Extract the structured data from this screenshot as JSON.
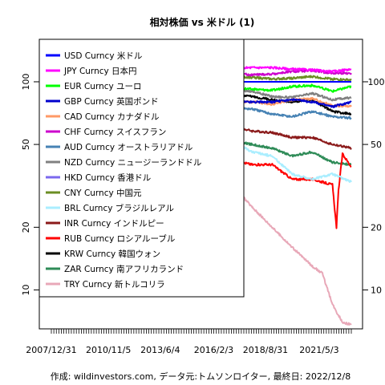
{
  "chart_data": {
    "type": "line",
    "title": "相対株価 vs 米ドル (1)",
    "caption": "作成: wildinvestors.com, データ元:トムソンロイター, 最終日: 2022/12/8",
    "y_scale": "log",
    "ylim": [
      6.5,
      160
    ],
    "y_ticks": [
      10,
      20,
      50,
      100
    ],
    "x_tick_labels": [
      "2007/12/31",
      "2010/11/5",
      "2013/6/4",
      "2016/2/3",
      "2018/8/31",
      "2021/5/3"
    ],
    "x_range": [
      "2007/12/31",
      "2022/12/8"
    ],
    "grid": false,
    "legend_position": "top-left",
    "series": [
      {
        "name": "USD Curncy 米ドル",
        "color": "#0000ff",
        "x": [
          2008,
          2022.94
        ],
        "values": [
          100,
          100
        ]
      },
      {
        "name": "JPY Curncy 日本円",
        "color": "#ff00ff",
        "x": [
          2008,
          2009,
          2010,
          2011,
          2012,
          2013,
          2014,
          2015,
          2016,
          2017,
          2018,
          2019,
          2020,
          2021,
          2022,
          2022.94
        ],
        "values": [
          112,
          118,
          122,
          128,
          130,
          122,
          115,
          111,
          112,
          116,
          117,
          117,
          115,
          114,
          112,
          115
        ]
      },
      {
        "name": "EUR Curncy ユーロ",
        "color": "#00ff00",
        "x": [
          2008,
          2009,
          2010,
          2011,
          2012,
          2013,
          2014,
          2015,
          2016,
          2017,
          2018,
          2019,
          2020,
          2021,
          2022,
          2022.94
        ],
        "values": [
          110,
          100,
          96,
          100,
          94,
          99,
          99,
          92,
          91,
          94,
          92,
          91,
          95,
          96,
          90,
          95
        ]
      },
      {
        "name": "GBP Curncy 英国ポンド",
        "color": "#0000cd",
        "x": [
          2008,
          2009,
          2010,
          2011,
          2012,
          2013,
          2014,
          2015,
          2016,
          2017,
          2018,
          2019,
          2020,
          2021,
          2022,
          2022.94
        ],
        "values": [
          110,
          92,
          90,
          93,
          90,
          88,
          90,
          88,
          82,
          80,
          80,
          80,
          82,
          80,
          76,
          80
        ]
      },
      {
        "name": "CAD Curncy カナダドル",
        "color": "#ff9966",
        "x": [
          2008,
          2009,
          2010,
          2011,
          2012,
          2013,
          2014,
          2015,
          2016,
          2017,
          2018,
          2019,
          2020,
          2021,
          2022,
          2022.94
        ],
        "values": [
          100,
          88,
          96,
          100,
          99,
          95,
          88,
          80,
          76,
          80,
          80,
          78,
          82,
          83,
          77,
          76
        ]
      },
      {
        "name": "CHF Curncy スイスフラン",
        "color": "#cc00cc",
        "x": [
          2008,
          2009,
          2010,
          2011,
          2012,
          2013,
          2014,
          2015,
          2016,
          2017,
          2018,
          2019,
          2020,
          2021,
          2022,
          2022.94
        ],
        "values": [
          105,
          98,
          102,
          115,
          112,
          113,
          112,
          110,
          108,
          110,
          108,
          109,
          112,
          113,
          110,
          110
        ]
      },
      {
        "name": "AUD Curncy オーストラリアドル",
        "color": "#4682b4",
        "x": [
          2008,
          2009,
          2010,
          2011,
          2012,
          2013,
          2014,
          2015,
          2016,
          2017,
          2018,
          2019,
          2020,
          2021,
          2022,
          2022.94
        ],
        "values": [
          105,
          78,
          96,
          103,
          102,
          95,
          88,
          76,
          72,
          75,
          74,
          70,
          68,
          72,
          68,
          67
        ]
      },
      {
        "name": "NZD Curncy ニュージーランドドル",
        "color": "#808080",
        "x": [
          2008,
          2009,
          2010,
          2011,
          2012,
          2013,
          2014,
          2015,
          2016,
          2017,
          2018,
          2019,
          2020,
          2021,
          2022,
          2022.94
        ],
        "values": [
          110,
          85,
          92,
          100,
          102,
          104,
          106,
          94,
          90,
          92,
          90,
          85,
          84,
          88,
          82,
          84
        ]
      },
      {
        "name": "HKD Curncy 香港ドル",
        "color": "#7b68ee",
        "x": [
          2008,
          2022.94
        ],
        "values": [
          100,
          100
        ]
      },
      {
        "name": "CNY Curncy 中国元",
        "color": "#6b8e23",
        "x": [
          2008,
          2009,
          2010,
          2011,
          2012,
          2013,
          2014,
          2015,
          2016,
          2017,
          2018,
          2019,
          2020,
          2021,
          2022,
          2022.94
        ],
        "values": [
          97,
          100,
          102,
          104,
          108,
          110,
          112,
          110,
          104,
          106,
          105,
          103,
          104,
          106,
          103,
          102
        ]
      },
      {
        "name": "BRL Curncy ブラジルレアル",
        "color": "#aaeeff",
        "x": [
          2008,
          2009,
          2010,
          2011,
          2012,
          2013,
          2014,
          2015,
          2016,
          2017,
          2018,
          2019,
          2020,
          2021,
          2022,
          2022.94
        ],
        "values": [
          100,
          90,
          98,
          102,
          85,
          78,
          72,
          52,
          50,
          52,
          46,
          44,
          36,
          34,
          36,
          33
        ]
      },
      {
        "name": "INR Curncy インドルピー",
        "color": "#8b1a1a",
        "x": [
          2008,
          2009,
          2010,
          2011,
          2012,
          2013,
          2014,
          2015,
          2016,
          2017,
          2018,
          2019,
          2020,
          2021,
          2022,
          2022.94
        ],
        "values": [
          100,
          85,
          88,
          87,
          75,
          68,
          66,
          63,
          60,
          61,
          58,
          57,
          54,
          54,
          50,
          48
        ]
      },
      {
        "name": "RUB Curncy ロシアルーブル",
        "color": "#ff0000",
        "x": [
          2008,
          2009,
          2010,
          2011,
          2012,
          2013,
          2014,
          2015,
          2016,
          2017,
          2018,
          2019,
          2020,
          2021,
          2022,
          2022.2,
          2022.3,
          2022.5,
          2022.94
        ],
        "values": [
          100,
          80,
          82,
          84,
          80,
          78,
          65,
          40,
          38,
          42,
          40,
          40,
          34,
          34,
          32,
          20,
          30,
          45,
          39
        ]
      },
      {
        "name": "KRW Curncy 韓国ウォン",
        "color": "#000000",
        "x": [
          2008,
          2009,
          2010,
          2011,
          2012,
          2013,
          2014,
          2015,
          2016,
          2017,
          2018,
          2019,
          2020,
          2021,
          2022,
          2022.94
        ],
        "values": [
          100,
          75,
          82,
          86,
          88,
          90,
          92,
          86,
          82,
          86,
          85,
          82,
          80,
          82,
          72,
          70
        ]
      },
      {
        "name": "ZAR Curncy 南アフリカランド",
        "color": "#2e8b57",
        "x": [
          2008,
          2009,
          2010,
          2011,
          2012,
          2013,
          2014,
          2015,
          2016,
          2017,
          2018,
          2019,
          2020,
          2021,
          2022,
          2022.94
        ],
        "values": [
          100,
          75,
          85,
          88,
          78,
          70,
          63,
          52,
          47,
          52,
          50,
          48,
          44,
          46,
          41,
          40
        ]
      },
      {
        "name": "TRY Curncy 新トルコリラ",
        "color": "#e8a8b8",
        "x": [
          2008,
          2009,
          2010,
          2011,
          2012,
          2013,
          2014,
          2015,
          2016,
          2017,
          2018,
          2019,
          2020,
          2021,
          2021.5,
          2022,
          2022.5,
          2022.94
        ],
        "values": [
          100,
          78,
          82,
          75,
          70,
          62,
          55,
          48,
          42,
          32,
          25,
          20,
          16,
          13,
          12,
          8.5,
          7,
          6.8
        ]
      }
    ]
  }
}
